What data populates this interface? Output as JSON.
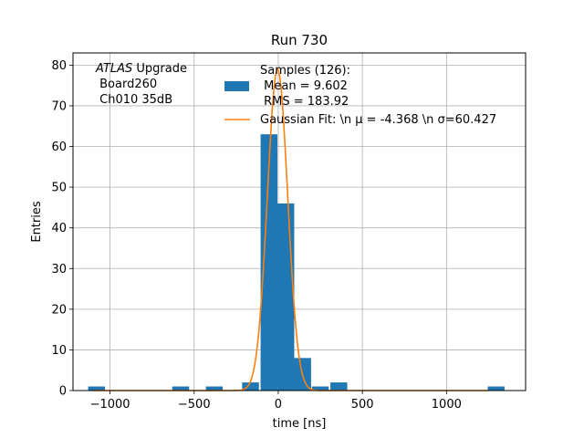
{
  "chart_data": {
    "type": "bar",
    "title": "Run 730",
    "xlabel": "time [ns]",
    "ylabel": "Entries",
    "xlim": [
      -1220,
      1470
    ],
    "ylim": [
      0,
      83
    ],
    "xticks": [
      -1000,
      -500,
      0,
      500,
      1000
    ],
    "yticks": [
      0,
      10,
      20,
      30,
      40,
      50,
      60,
      70,
      80
    ],
    "xtick_labels": [
      "−1000",
      "−500",
      "0",
      "500",
      "1000"
    ],
    "ytick_labels": [
      "0",
      "10",
      "20",
      "30",
      "40",
      "50",
      "60",
      "70",
      "80"
    ],
    "grid": true,
    "bar_color": "#1f77b4",
    "line_color": "#ff7f0e",
    "histogram": {
      "name": "Samples (126):\n Mean = 9.602\n RMS = 183.92",
      "bin_width": 100,
      "bins": [
        {
          "x0": -1130,
          "count": 1
        },
        {
          "x0": -630,
          "count": 1
        },
        {
          "x0": -430,
          "count": 1
        },
        {
          "x0": -215,
          "count": 2
        },
        {
          "x0": -105,
          "count": 63
        },
        {
          "x0": -5,
          "count": 46
        },
        {
          "x0": 95,
          "count": 8
        },
        {
          "x0": 200,
          "count": 1
        },
        {
          "x0": 310,
          "count": 2
        },
        {
          "x0": 1245,
          "count": 1
        }
      ]
    },
    "fit": {
      "name": "Gaussian Fit: \\n μ = -4.368 \\n σ=60.427",
      "amplitude": 79,
      "mu": -4.368,
      "sigma": 60.427,
      "x_range": [
        -1100,
        1250
      ]
    },
    "legend_placement": "top-right",
    "annotation": {
      "lines": [
        "ATLAS Upgrade",
        " Board260",
        " Ch010 35dB"
      ],
      "placement": "top-left"
    }
  }
}
